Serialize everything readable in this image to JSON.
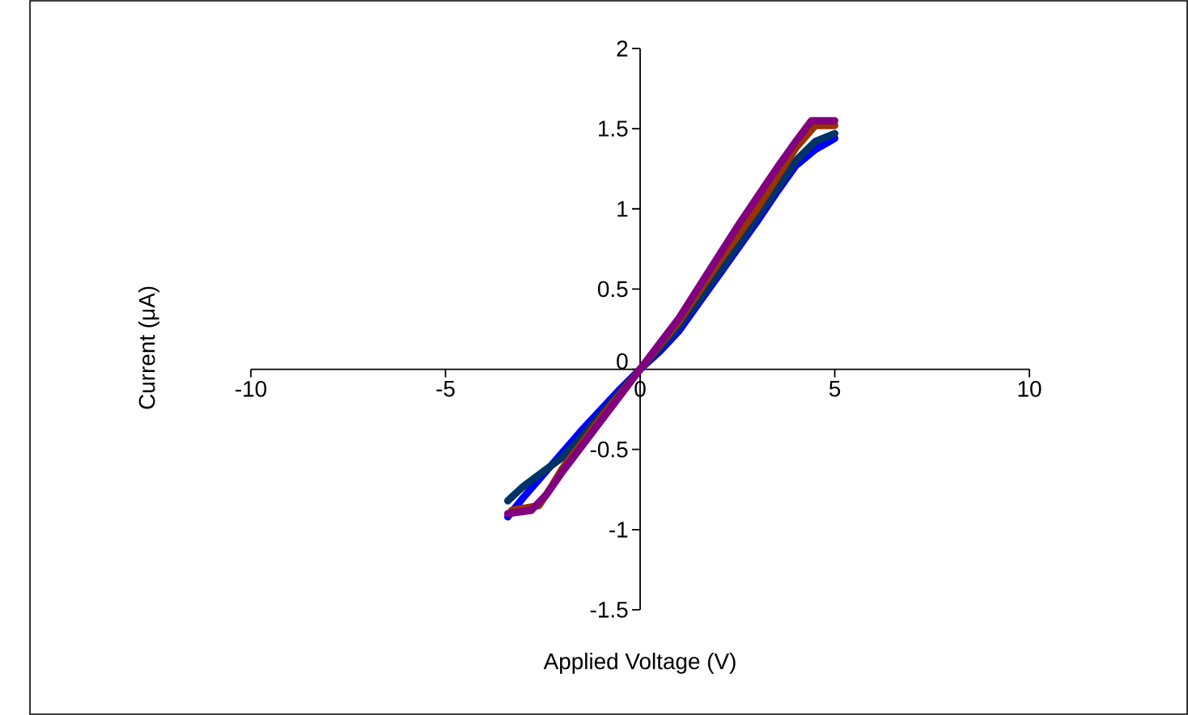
{
  "chart_data": {
    "type": "line",
    "xlabel": "Applied Voltage (V)",
    "ylabel": "Current (μA)",
    "xlim": [
      -10,
      10
    ],
    "xticks": [
      -10,
      -5,
      0,
      5,
      10
    ],
    "ylim": [
      -1.5,
      2
    ],
    "yticks": [
      -1.5,
      -1,
      -0.5,
      0,
      0.5,
      1,
      1.5,
      2
    ],
    "marker": "none",
    "line_style": "solid",
    "series": [
      {
        "color": "#0000ff",
        "x": [
          -3.4,
          -3,
          -2.5,
          -2,
          -1.5,
          -1,
          -0.5,
          0,
          0.5,
          1,
          1.5,
          2,
          2.5,
          3,
          3.5,
          4,
          4.5,
          5
        ],
        "values": [
          -0.92,
          -0.8,
          -0.66,
          -0.52,
          -0.38,
          -0.25,
          -0.12,
          0,
          0.11,
          0.24,
          0.41,
          0.58,
          0.75,
          0.92,
          1.1,
          1.27,
          1.37,
          1.44
        ]
      },
      {
        "color": "#003366",
        "x": [
          -3.4,
          -3,
          -2.5,
          -2,
          -1.5,
          -1,
          -0.5,
          0,
          0.5,
          1,
          1.5,
          2,
          2.5,
          3,
          3.5,
          4,
          4.5,
          5
        ],
        "values": [
          -0.82,
          -0.73,
          -0.64,
          -0.55,
          -0.42,
          -0.28,
          -0.14,
          0,
          0.13,
          0.27,
          0.43,
          0.6,
          0.77,
          0.95,
          1.12,
          1.3,
          1.42,
          1.47
        ]
      },
      {
        "color": "#993300",
        "x": [
          -3.3,
          -2.6,
          -2.3,
          -2,
          -1.5,
          -1,
          -0.5,
          0,
          0.5,
          1,
          1.5,
          2,
          2.5,
          3,
          3.5,
          4,
          4.5,
          5
        ],
        "values": [
          -0.88,
          -0.85,
          -0.74,
          -0.62,
          -0.46,
          -0.3,
          -0.15,
          0,
          0.15,
          0.3,
          0.48,
          0.66,
          0.83,
          1.0,
          1.19,
          1.38,
          1.52,
          1.52
        ]
      },
      {
        "color": "#800080",
        "x": [
          -3.4,
          -2.8,
          -2.4,
          -2,
          -1.5,
          -1,
          -0.5,
          0,
          0.5,
          1,
          1.5,
          2,
          2.5,
          3,
          3.5,
          4,
          4.4,
          5
        ],
        "values": [
          -0.9,
          -0.88,
          -0.78,
          -0.64,
          -0.48,
          -0.32,
          -0.16,
          0,
          0.16,
          0.32,
          0.51,
          0.7,
          0.89,
          1.07,
          1.25,
          1.42,
          1.55,
          1.55
        ]
      }
    ]
  }
}
